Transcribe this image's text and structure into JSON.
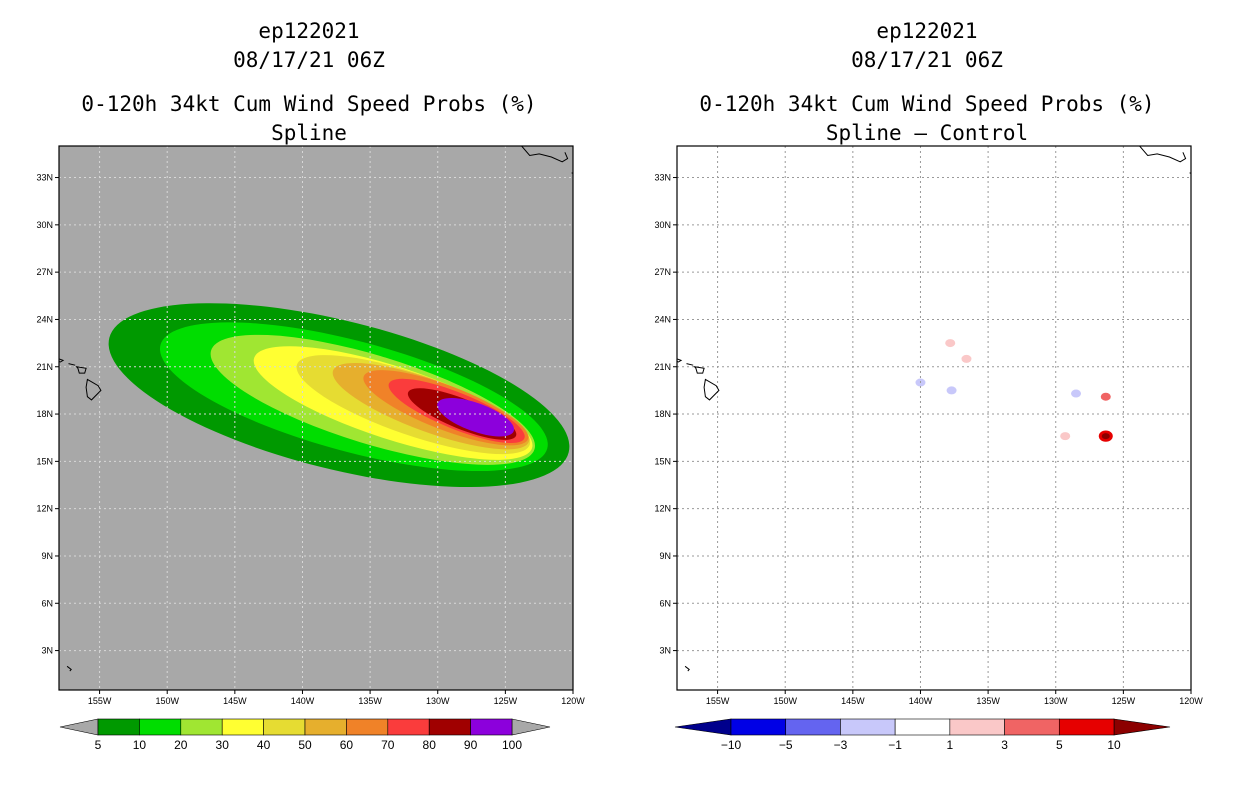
{
  "panels": [
    {
      "storm_id": "ep122021",
      "datetime": "08/17/21 06Z",
      "title": "0-120h 34kt Cum Wind Speed Probs (%)",
      "subtitle": "Spline",
      "colors": {
        "background": "#a8a8a8",
        "coast": "#000000",
        "grid": "#d8d8d8"
      }
    },
    {
      "storm_id": "ep122021",
      "datetime": "08/17/21 06Z",
      "title": "0-120h 34kt Cum Wind Speed Probs (%)",
      "subtitle": "Spline – Control",
      "colors": {
        "background": "#ffffff",
        "coast": "#000000",
        "grid": "#9a9a9a"
      }
    }
  ],
  "chart_data": [
    {
      "type": "heatmap",
      "title": "0-120h 34kt Cum Wind Speed Probs (%)",
      "subtitle": "Spline",
      "x_axis": {
        "range": [
          -158,
          -120
        ],
        "ticks": [
          -155,
          -150,
          -145,
          -140,
          -135,
          -130,
          -125,
          -120
        ],
        "tick_labels": [
          "155W",
          "150W",
          "145W",
          "140W",
          "135W",
          "130W",
          "125W",
          "120W"
        ]
      },
      "y_axis": {
        "range": [
          0.5,
          35
        ],
        "ticks": [
          3,
          6,
          9,
          12,
          15,
          18,
          21,
          24,
          27,
          30,
          33
        ],
        "tick_labels": [
          "3N",
          "6N",
          "9N",
          "12N",
          "15N",
          "18N",
          "21N",
          "24N",
          "27N",
          "30N",
          "33N"
        ]
      },
      "grid": true,
      "legend": {
        "placement": "bottom",
        "levels": [
          "5",
          "10",
          "20",
          "30",
          "40",
          "50",
          "60",
          "70",
          "80",
          "90",
          "100"
        ],
        "colors": [
          "#009900",
          "#00dd00",
          "#a0e632",
          "#ffff32",
          "#e6dc32",
          "#e6af2d",
          "#f08228",
          "#fa3c3c",
          "#a00000",
          "#8c00dc"
        ],
        "end_colors": [
          "#a8a8a8",
          "#a8a8a8"
        ]
      },
      "features": [
        {
          "type": "probability-envelope",
          "threshold": 5,
          "color_index": 0,
          "center": [
            -137.3,
            19.2
          ],
          "semi_axes": [
            17.5,
            4.7
          ],
          "rotation_deg": 14
        },
        {
          "type": "probability-envelope",
          "threshold": 10,
          "color_index": 1,
          "center": [
            -136.2,
            19.1
          ],
          "semi_axes": [
            14.8,
            3.5
          ],
          "rotation_deg": 15
        },
        {
          "type": "probability-envelope",
          "threshold": 20,
          "color_index": 2,
          "center": [
            -134.8,
            18.9
          ],
          "semi_axes": [
            12.5,
            2.8
          ],
          "rotation_deg": 17
        },
        {
          "type": "probability-envelope",
          "threshold": 30,
          "color_index": 3,
          "center": [
            -133.3,
            18.7
          ],
          "semi_axes": [
            10.8,
            2.3
          ],
          "rotation_deg": 18
        },
        {
          "type": "probability-envelope",
          "threshold": 40,
          "color_index": 4,
          "center": [
            -131.8,
            18.6
          ],
          "semi_axes": [
            9.1,
            1.95
          ],
          "rotation_deg": 19
        },
        {
          "type": "probability-envelope",
          "threshold": 50,
          "color_index": 5,
          "center": [
            -130.5,
            18.5
          ],
          "semi_axes": [
            7.7,
            1.65
          ],
          "rotation_deg": 20
        },
        {
          "type": "probability-envelope",
          "threshold": 60,
          "color_index": 6,
          "center": [
            -129.4,
            18.4
          ],
          "semi_axes": [
            6.5,
            1.4
          ],
          "rotation_deg": 21
        },
        {
          "type": "probability-envelope",
          "threshold": 70,
          "color_index": 7,
          "center": [
            -128.6,
            18.2
          ],
          "semi_axes": [
            5.4,
            1.15
          ],
          "rotation_deg": 22
        },
        {
          "type": "probability-envelope",
          "threshold": 80,
          "color_index": 8,
          "center": [
            -128.2,
            18.0
          ],
          "semi_axes": [
            4.3,
            0.95
          ],
          "rotation_deg": 22
        },
        {
          "type": "probability-envelope",
          "threshold": 90,
          "color_index": 9,
          "center": [
            -127.2,
            17.8
          ],
          "semi_axes": [
            3.0,
            0.9
          ],
          "rotation_deg": 20
        }
      ]
    },
    {
      "type": "heatmap",
      "title": "0-120h 34kt Cum Wind Speed Probs (%)",
      "subtitle": "Spline – Control",
      "x_axis": {
        "range": [
          -158,
          -120
        ],
        "ticks": [
          -155,
          -150,
          -145,
          -140,
          -135,
          -130,
          -125,
          -120
        ],
        "tick_labels": [
          "155W",
          "150W",
          "145W",
          "140W",
          "135W",
          "130W",
          "125W",
          "120W"
        ]
      },
      "y_axis": {
        "range": [
          0.5,
          35
        ],
        "ticks": [
          3,
          6,
          9,
          12,
          15,
          18,
          21,
          24,
          27,
          30,
          33
        ],
        "tick_labels": [
          "3N",
          "6N",
          "9N",
          "12N",
          "15N",
          "18N",
          "21N",
          "24N",
          "27N",
          "30N",
          "33N"
        ]
      },
      "grid": true,
      "legend": {
        "placement": "bottom",
        "levels": [
          "−10",
          "−5",
          "−3",
          "−1",
          "1",
          "3",
          "5",
          "10"
        ],
        "colors": [
          "#0000e6",
          "#6464f0",
          "#c8c8fa",
          "#ffffff",
          "#fac8c8",
          "#f06464",
          "#e60000"
        ],
        "end_colors": [
          "#00008c",
          "#8c0000"
        ]
      },
      "features": [
        {
          "type": "difference-blob",
          "lon": -137.8,
          "lat": 22.5,
          "value": 2,
          "color": "#fac8c8"
        },
        {
          "type": "difference-blob",
          "lon": -136.6,
          "lat": 21.5,
          "value": 1.5,
          "color": "#fac8c8"
        },
        {
          "type": "difference-blob",
          "lon": -140.0,
          "lat": 20.0,
          "value": -2,
          "color": "#c8c8fa"
        },
        {
          "type": "difference-blob",
          "lon": -137.7,
          "lat": 19.5,
          "value": -2,
          "color": "#c8c8fa"
        },
        {
          "type": "difference-blob",
          "lon": -128.5,
          "lat": 19.3,
          "value": -2,
          "color": "#c8c8fa"
        },
        {
          "type": "difference-blob",
          "lon": -126.3,
          "lat": 19.1,
          "value": 4,
          "color": "#f06464"
        },
        {
          "type": "difference-blob",
          "lon": -129.3,
          "lat": 16.6,
          "value": 2,
          "color": "#fac8c8"
        },
        {
          "type": "difference-blob",
          "lon": -126.3,
          "lat": 16.6,
          "value": 8,
          "color": "#e60000"
        }
      ]
    }
  ]
}
